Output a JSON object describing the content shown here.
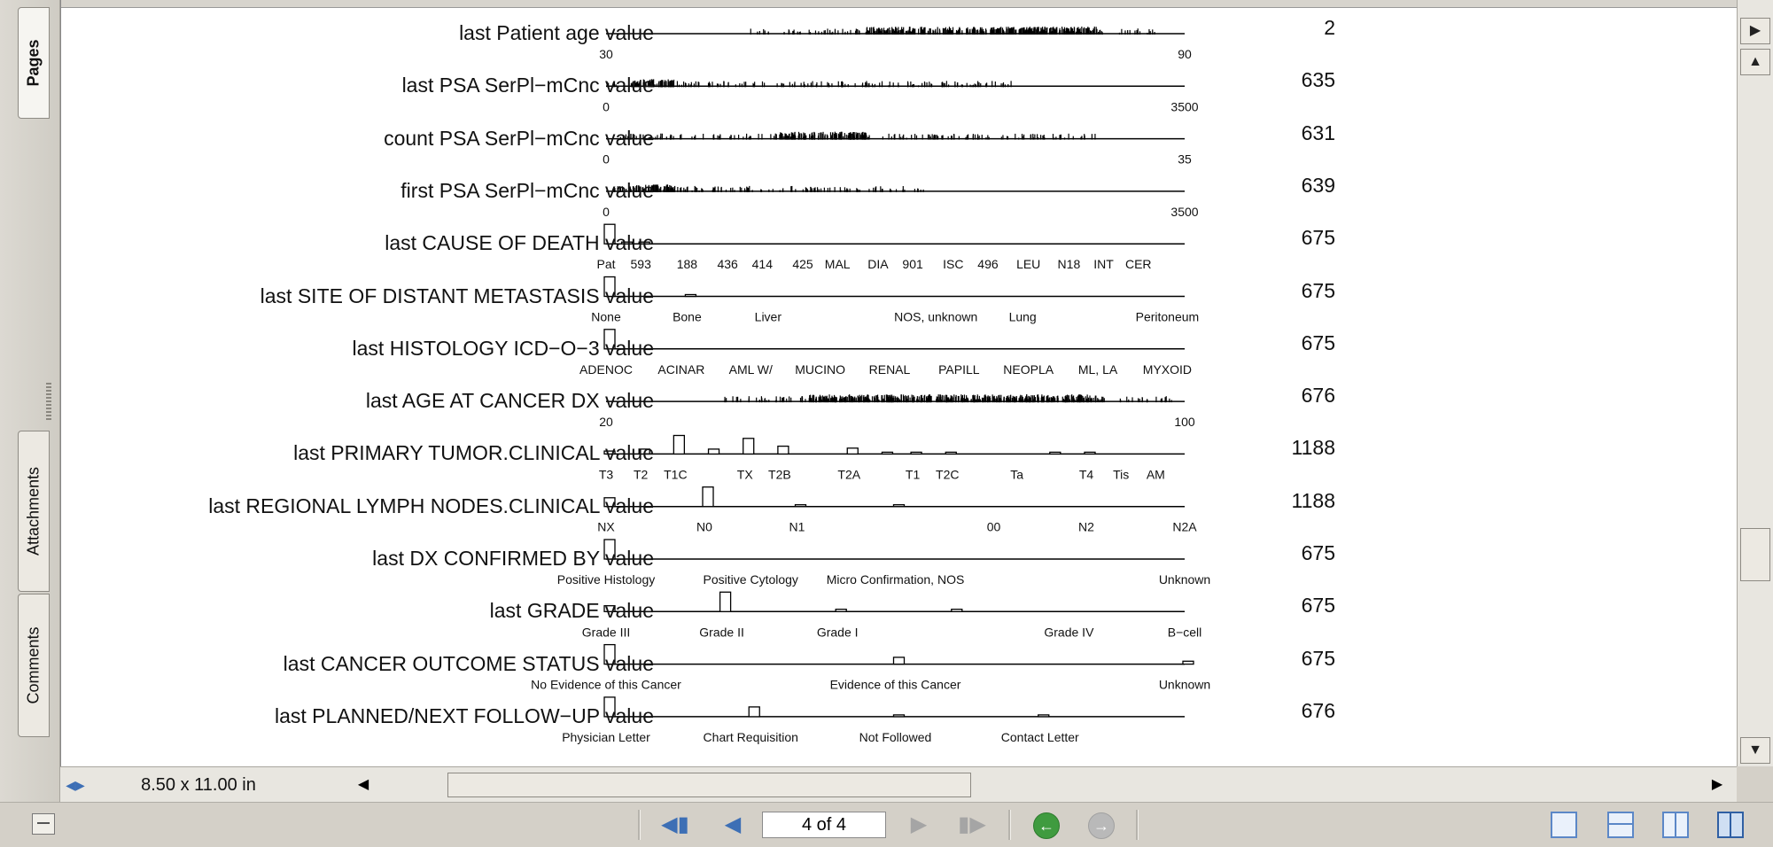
{
  "sidebar": {
    "tabs": [
      {
        "label": "Pages"
      },
      {
        "label": "Attachments"
      },
      {
        "label": "Comments"
      }
    ]
  },
  "statusbar": {
    "page_size": "8.50 x 11.00 in",
    "page_indicator": "4 of 4"
  },
  "rows": [
    {
      "label": "last Patient age value",
      "count": "2",
      "kind": "spike",
      "ticks": [
        "30",
        "90"
      ],
      "tick_pos": [
        0,
        1
      ],
      "density": [
        [
          0.25,
          0.45
        ],
        [
          0.45,
          0.85
        ],
        [
          0.85,
          0.95
        ]
      ]
    },
    {
      "label": "last PSA SerPl−mCnc value",
      "count": "635",
      "kind": "spike",
      "ticks": [
        "0",
        "3500"
      ],
      "tick_pos": [
        0,
        1
      ],
      "density": [
        [
          0,
          0.05
        ],
        [
          0.05,
          0.12
        ],
        [
          0.12,
          0.7
        ]
      ]
    },
    {
      "label": "count PSA SerPl−mCnc value",
      "count": "631",
      "kind": "spike",
      "ticks": [
        "0",
        "35"
      ],
      "tick_pos": [
        0,
        1
      ],
      "density": [
        [
          0.02,
          0.3
        ],
        [
          0.3,
          0.45
        ],
        [
          0.45,
          0.85
        ]
      ]
    },
    {
      "label": "first PSA SerPl−mCnc value",
      "count": "639",
      "kind": "spike",
      "ticks": [
        "0",
        "3500"
      ],
      "tick_pos": [
        0,
        1
      ],
      "density": [
        [
          0,
          0.04
        ],
        [
          0.04,
          0.12
        ],
        [
          0.12,
          0.55
        ]
      ]
    },
    {
      "label": "last CAUSE OF DEATH value",
      "count": "675",
      "kind": "bar",
      "ticks": [
        "Pat",
        "593",
        "188",
        "436",
        "414",
        "425",
        "MAL",
        "DIA",
        "901",
        "ISC",
        "496",
        "LEU",
        "N18",
        "INT",
        "CER"
      ],
      "tick_pos": [
        0,
        0.06,
        0.14,
        0.21,
        0.27,
        0.34,
        0.4,
        0.47,
        0.53,
        0.6,
        0.66,
        0.73,
        0.8,
        0.86,
        0.92
      ],
      "bars": [
        [
          0,
          1
        ],
        [
          0.03,
          0.08
        ],
        [
          0.06,
          0.06
        ]
      ]
    },
    {
      "label": "last SITE OF DISTANT METASTASIS value",
      "count": "675",
      "kind": "bar",
      "ticks": [
        "None",
        "Bone",
        "Liver",
        "NOS, unknown",
        "Lung",
        "Peritoneum"
      ],
      "tick_pos": [
        0,
        0.14,
        0.28,
        0.57,
        0.72,
        0.97
      ],
      "bars": [
        [
          0,
          1
        ],
        [
          0.14,
          0.05
        ]
      ]
    },
    {
      "label": "last HISTOLOGY ICD−O−3 value",
      "count": "675",
      "kind": "bar",
      "ticks": [
        "ADENOC",
        "ACINAR",
        "AML W/",
        "MUCINO",
        "RENAL",
        "PAPILL",
        "NEOPLA",
        "ML, LA",
        "MYXOID"
      ],
      "tick_pos": [
        0,
        0.13,
        0.25,
        0.37,
        0.49,
        0.61,
        0.73,
        0.85,
        0.97
      ],
      "bars": [
        [
          0,
          1
        ]
      ]
    },
    {
      "label": "last AGE AT CANCER DX value",
      "count": "676",
      "kind": "spike",
      "ticks": [
        "20",
        "100"
      ],
      "tick_pos": [
        0,
        1
      ],
      "density": [
        [
          0.2,
          0.35
        ],
        [
          0.35,
          0.85
        ],
        [
          0.85,
          0.98
        ]
      ]
    },
    {
      "label": "last PRIMARY TUMOR.CLINICAL value",
      "count": "1188",
      "kind": "bar",
      "ticks": [
        "T3",
        "T2",
        "T1C",
        "TX",
        "T2B",
        "T2A",
        "T1",
        "T2C",
        "Ta",
        "T4",
        "Tis",
        "AM"
      ],
      "tick_pos": [
        0,
        0.06,
        0.12,
        0.24,
        0.3,
        0.42,
        0.53,
        0.59,
        0.71,
        0.83,
        0.89,
        0.95
      ],
      "bars": [
        [
          0,
          0.15
        ],
        [
          0.06,
          0.25
        ],
        [
          0.12,
          0.95
        ],
        [
          0.18,
          0.25
        ],
        [
          0.24,
          0.8
        ],
        [
          0.3,
          0.4
        ],
        [
          0.42,
          0.3
        ],
        [
          0.48,
          0.08
        ],
        [
          0.53,
          0.08
        ],
        [
          0.59,
          0.08
        ],
        [
          0.77,
          0.06
        ],
        [
          0.83,
          0.06
        ]
      ]
    },
    {
      "label": "last REGIONAL LYMPH NODES.CLINICAL value",
      "count": "1188",
      "kind": "bar",
      "ticks": [
        "NX",
        "N0",
        "N1",
        "00",
        "N2",
        "N2A"
      ],
      "tick_pos": [
        0,
        0.17,
        0.33,
        0.67,
        0.83,
        1
      ],
      "bars": [
        [
          0,
          0.45
        ],
        [
          0.17,
          1
        ],
        [
          0.33,
          0.06
        ],
        [
          0.5,
          0.06
        ]
      ]
    },
    {
      "label": "last DX CONFIRMED BY value",
      "count": "675",
      "kind": "bar",
      "ticks": [
        "Positive Histology",
        "Positive Cytology",
        "Micro Confirmation, NOS",
        "Unknown"
      ],
      "tick_pos": [
        0,
        0.25,
        0.5,
        1
      ],
      "bars": [
        [
          0,
          1
        ]
      ]
    },
    {
      "label": "last GRADE value",
      "count": "675",
      "kind": "bar",
      "ticks": [
        "Grade III",
        "Grade II",
        "Grade I",
        "Grade IV",
        "B−cell"
      ],
      "tick_pos": [
        0,
        0.2,
        0.4,
        0.8,
        1
      ],
      "bars": [
        [
          0,
          0.3
        ],
        [
          0.2,
          1
        ],
        [
          0.4,
          0.12
        ],
        [
          0.6,
          0.12
        ]
      ]
    },
    {
      "label": "last CANCER OUTCOME STATUS value",
      "count": "675",
      "kind": "bar",
      "ticks": [
        "No Evidence of this Cancer",
        "Evidence of this Cancer",
        "Unknown"
      ],
      "tick_pos": [
        0,
        0.5,
        1
      ],
      "bars": [
        [
          0,
          1
        ],
        [
          0.5,
          0.35
        ],
        [
          1,
          0.15
        ]
      ]
    },
    {
      "label": "last PLANNED/NEXT FOLLOW−UP value",
      "count": "676",
      "kind": "bar",
      "ticks": [
        "Physician Letter",
        "Chart Requisition",
        "Not Followed",
        "Contact Letter"
      ],
      "tick_pos": [
        0,
        0.25,
        0.5,
        0.75
      ],
      "bars": [
        [
          0,
          1
        ],
        [
          0.25,
          0.5
        ],
        [
          0.5,
          0.08
        ],
        [
          0.75,
          0.08
        ]
      ]
    }
  ],
  "colors": {
    "accent": "#3d6fb5",
    "go_back": "#3f9b3f",
    "disabled": "#a5a5a5"
  }
}
